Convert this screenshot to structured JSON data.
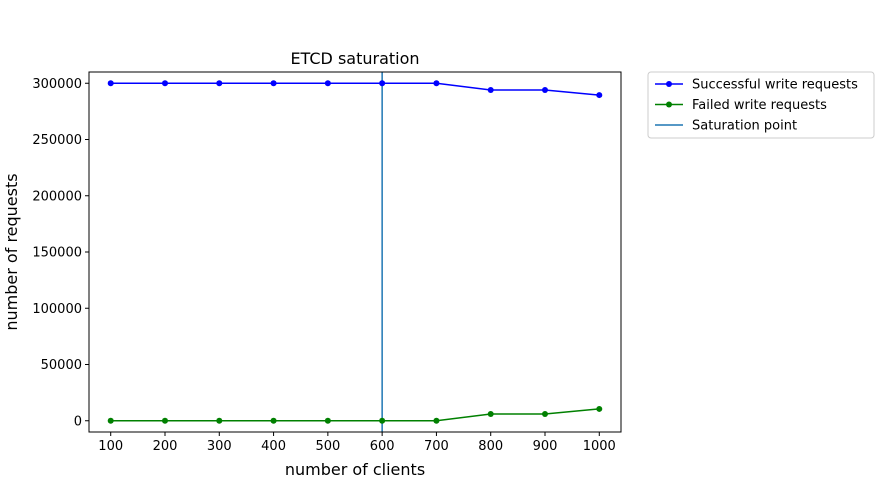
{
  "chart_data": {
    "type": "line",
    "title": "ETCD saturation",
    "xlabel": "number of clients",
    "ylabel": "number of requests",
    "x": [
      100,
      200,
      300,
      400,
      500,
      600,
      700,
      800,
      900,
      1000
    ],
    "xlim": [
      60,
      1040
    ],
    "ylim": [
      -10000,
      310000
    ],
    "x_ticks": [
      100,
      200,
      300,
      400,
      500,
      600,
      700,
      800,
      900,
      1000
    ],
    "y_ticks": [
      0,
      50000,
      100000,
      150000,
      200000,
      250000,
      300000
    ],
    "series": [
      {
        "name": "Successful write requests",
        "color": "#0000ff",
        "marker": "circle",
        "values": [
          300000,
          300000,
          300000,
          300000,
          300000,
          300000,
          300000,
          294000,
          294000,
          289500
        ]
      },
      {
        "name": "Failed write requests",
        "color": "#008000",
        "marker": "circle",
        "values": [
          0,
          0,
          0,
          0,
          0,
          0,
          0,
          6000,
          6000,
          10500
        ]
      }
    ],
    "vlines": [
      {
        "name": "Saturation point",
        "x": 600,
        "color": "#1f77b4"
      }
    ],
    "legend_position": "outside-top-right",
    "grid": false
  }
}
